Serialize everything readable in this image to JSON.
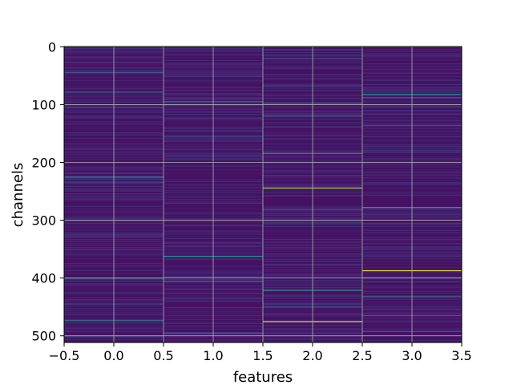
{
  "chart_data": {
    "type": "heatmap",
    "title": "",
    "xlabel": "features",
    "ylabel": "channels",
    "xlim": [
      -0.5,
      3.5
    ],
    "ylim": [
      511.5,
      -0.5
    ],
    "n_rows": 512,
    "n_cols": 4,
    "colormap": "viridis",
    "xticks": [
      -0.5,
      0.0,
      0.5,
      1.0,
      1.5,
      2.0,
      2.5,
      3.0,
      3.5
    ],
    "xtick_labels": [
      "−0.5",
      "0.0",
      "0.5",
      "1.0",
      "1.5",
      "2.0",
      "2.5",
      "3.0",
      "3.5"
    ],
    "yticks": [
      0,
      100,
      200,
      300,
      400,
      500
    ],
    "ytick_labels": [
      "0",
      "100",
      "200",
      "300",
      "400",
      "500"
    ],
    "grid": true,
    "background_value": 0.05,
    "highlights": [
      {
        "col": 0,
        "row": 44,
        "value": 0.3
      },
      {
        "col": 0,
        "row": 78,
        "value": 0.35
      },
      {
        "col": 0,
        "row": 105,
        "value": 0.3
      },
      {
        "col": 0,
        "row": 225,
        "value": 0.45
      },
      {
        "col": 0,
        "row": 235,
        "value": 0.3
      },
      {
        "col": 0,
        "row": 400,
        "value": 0.5
      },
      {
        "col": 0,
        "row": 473,
        "value": 0.55
      },
      {
        "col": 0,
        "row": 500,
        "value": 0.35
      },
      {
        "col": 1,
        "row": 95,
        "value": 0.55
      },
      {
        "col": 1,
        "row": 155,
        "value": 0.25
      },
      {
        "col": 1,
        "row": 362,
        "value": 0.5
      },
      {
        "col": 1,
        "row": 406,
        "value": 0.35
      },
      {
        "col": 1,
        "row": 495,
        "value": 0.35
      },
      {
        "col": 2,
        "row": 5,
        "value": 0.25
      },
      {
        "col": 2,
        "row": 20,
        "value": 0.3
      },
      {
        "col": 2,
        "row": 97,
        "value": 0.5
      },
      {
        "col": 2,
        "row": 120,
        "value": 0.45
      },
      {
        "col": 2,
        "row": 184,
        "value": 0.55
      },
      {
        "col": 2,
        "row": 244,
        "value": 0.85
      },
      {
        "col": 2,
        "row": 282,
        "value": 0.3
      },
      {
        "col": 2,
        "row": 421,
        "value": 0.55
      },
      {
        "col": 2,
        "row": 450,
        "value": 0.35
      },
      {
        "col": 2,
        "row": 475,
        "value": 0.95
      },
      {
        "col": 2,
        "row": 495,
        "value": 0.35
      },
      {
        "col": 3,
        "row": 82,
        "value": 0.5
      },
      {
        "col": 3,
        "row": 88,
        "value": 0.45
      },
      {
        "col": 3,
        "row": 136,
        "value": 0.3
      },
      {
        "col": 3,
        "row": 278,
        "value": 0.75
      },
      {
        "col": 3,
        "row": 387,
        "value": 0.95
      },
      {
        "col": 3,
        "row": 432,
        "value": 0.4
      },
      {
        "col": 3,
        "row": 465,
        "value": 0.5
      },
      {
        "col": 3,
        "row": 492,
        "value": 0.35
      }
    ]
  }
}
